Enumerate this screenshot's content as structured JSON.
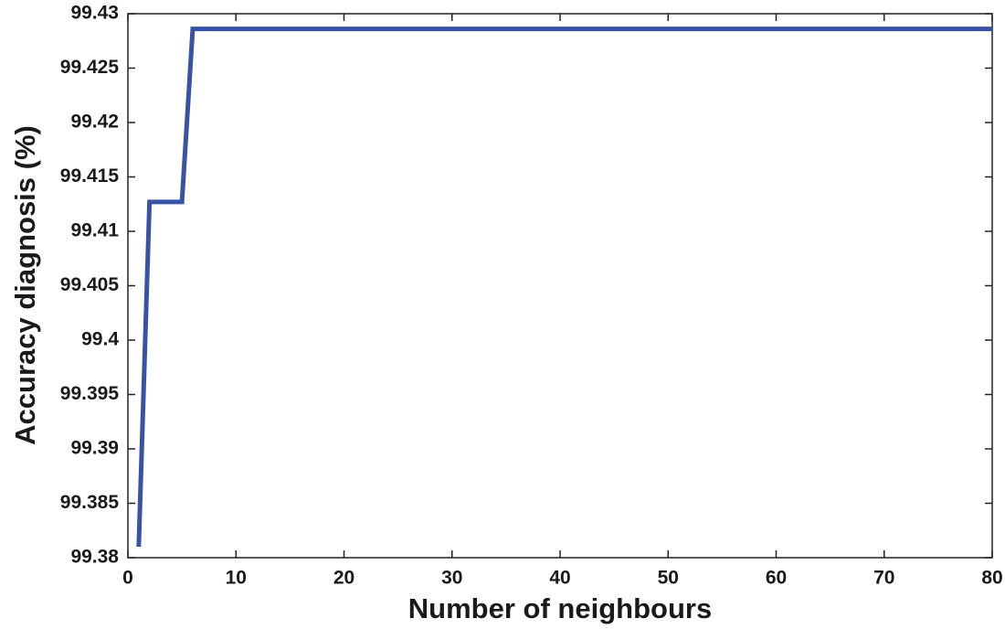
{
  "chart_data": {
    "type": "line",
    "x_label": "Number of neighbours",
    "y_label": "Accuracy diagnosis (%)",
    "x": [
      1,
      2,
      5,
      6,
      80
    ],
    "series": [
      {
        "color": "#3953a4",
        "values": [
          99.381,
          99.4127,
          99.4127,
          99.4286,
          99.4286
        ]
      }
    ],
    "xlim": [
      0,
      80
    ],
    "xticks": [
      0,
      10,
      20,
      30,
      40,
      50,
      60,
      70,
      80
    ],
    "ylim": [
      99.38,
      99.43
    ],
    "yticks": [
      99.38,
      99.385,
      99.39,
      99.395,
      99.4,
      99.405,
      99.41,
      99.415,
      99.42,
      99.425,
      99.43
    ],
    "grid": false
  }
}
